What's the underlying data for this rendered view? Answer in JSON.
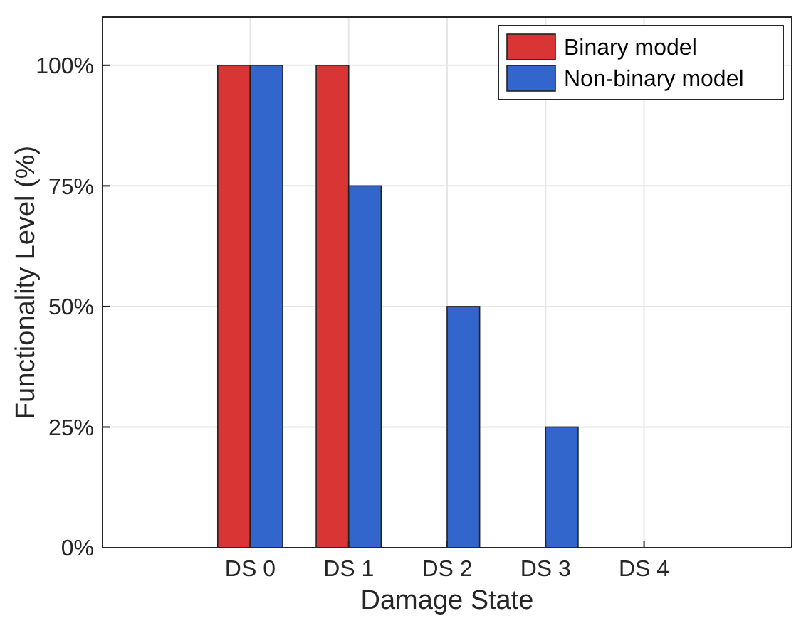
{
  "chart_data": {
    "type": "bar",
    "xlabel": "Damage State",
    "ylabel": "Functionality Level (%)",
    "categories": [
      "DS 0",
      "DS 1",
      "DS 2",
      "DS 3",
      "DS 4"
    ],
    "series": [
      {
        "name": "Binary model",
        "color": "#d93535",
        "values": [
          100,
          100,
          0,
          0,
          0
        ]
      },
      {
        "name": "Non-binary model",
        "color": "#3366cc",
        "values": [
          100,
          75,
          50,
          25,
          0
        ]
      }
    ],
    "ylim": [
      0,
      110
    ],
    "yticks": [
      {
        "value": 0,
        "label": "0%"
      },
      {
        "value": 25,
        "label": "25%"
      },
      {
        "value": 50,
        "label": "50%"
      },
      {
        "value": 75,
        "label": "75%"
      },
      {
        "value": 100,
        "label": "100%"
      }
    ],
    "grid": true,
    "legend": "top right"
  }
}
